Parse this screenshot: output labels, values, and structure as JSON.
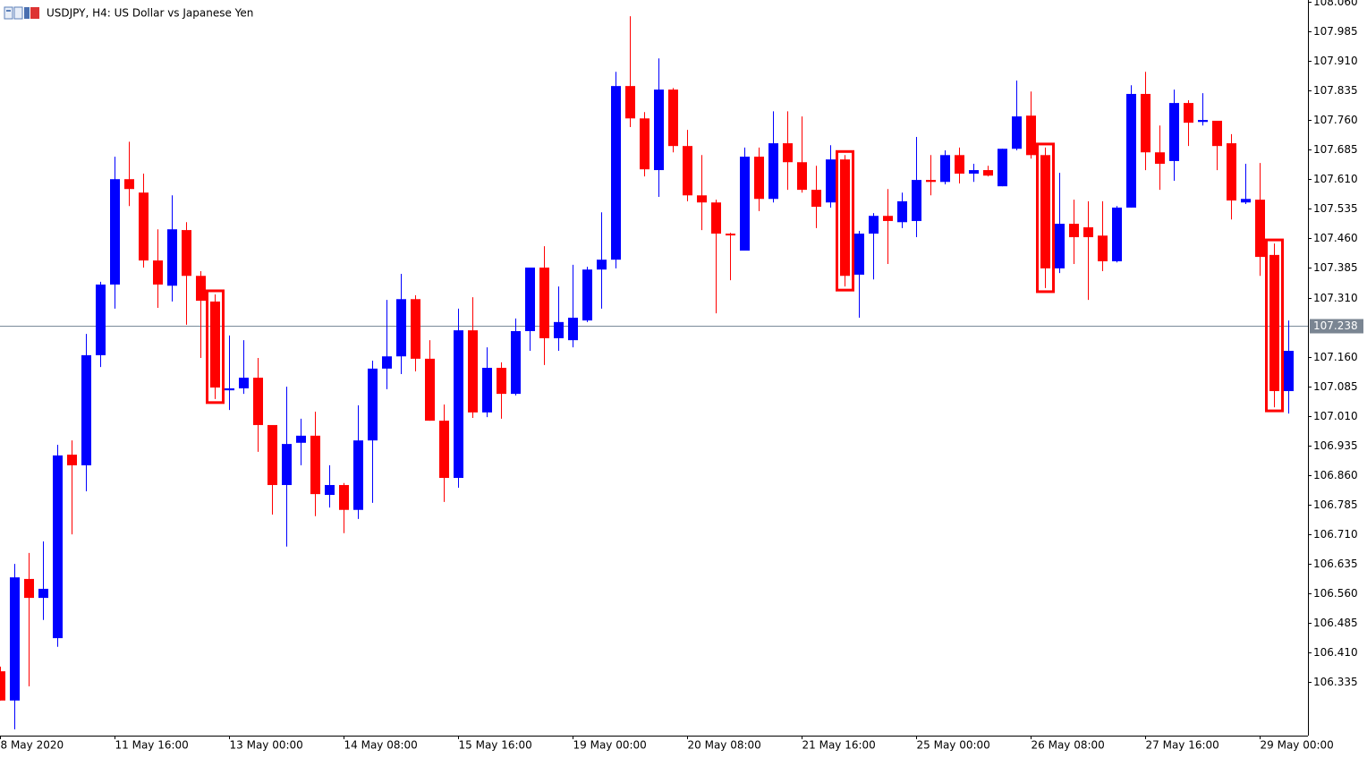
{
  "chart_data": {
    "type": "candlestick",
    "title": "USDJPY, H4:  US Dollar vs Japanese Yen",
    "categories": [
      "8 May 2020",
      null,
      null,
      null,
      null,
      null,
      null,
      null,
      "11 May 16:00",
      null,
      null,
      null,
      null,
      null,
      null,
      null,
      "13 May 00:00",
      null,
      null,
      null,
      null,
      null,
      null,
      null,
      "14 May 08:00",
      null,
      null,
      null,
      null,
      null,
      null,
      null,
      "15 May 16:00",
      null,
      null,
      null,
      null,
      null,
      null,
      null,
      "19 May 00:00",
      null,
      null,
      null,
      null,
      null,
      null,
      null,
      "20 May 08:00",
      null,
      null,
      null,
      null,
      null,
      null,
      null,
      "21 May 16:00",
      null,
      null,
      null,
      null,
      null,
      null,
      null,
      "25 May 00:00",
      null,
      null,
      null,
      null,
      null,
      null,
      null,
      "26 May 08:00",
      null,
      null,
      null,
      null,
      null,
      null,
      null,
      "27 May 16:00",
      null,
      null,
      null,
      null,
      null,
      null,
      null,
      "29 May 00:00",
      null,
      null
    ],
    "open": [
      106.363,
      106.289,
      106.597,
      106.549,
      106.447,
      106.912,
      106.885,
      107.164,
      107.343,
      107.61,
      107.576,
      107.404,
      107.34,
      107.481,
      107.365,
      107.3,
      107.075,
      107.08,
      107.107,
      106.987,
      106.835,
      106.942,
      106.96,
      106.81,
      106.835,
      106.772,
      106.948,
      107.13,
      107.161,
      107.306,
      107.155,
      106.998,
      106.853,
      107.227,
      107.019,
      107.132,
      107.066,
      107.225,
      107.386,
      107.207,
      107.202,
      107.252,
      107.381,
      107.406,
      107.846,
      107.764,
      107.633,
      107.837,
      107.694,
      107.569,
      107.551,
      107.472,
      107.429,
      107.667,
      107.56,
      107.701,
      107.653,
      107.583,
      107.551,
      107.66,
      107.368,
      107.472,
      107.517,
      107.501,
      107.504,
      107.608,
      107.603,
      107.671,
      107.624,
      107.633,
      107.592,
      107.687,
      107.771,
      107.671,
      107.384,
      107.497,
      107.488,
      107.467,
      107.402,
      107.538,
      107.826,
      107.678,
      107.656,
      107.803,
      107.755,
      107.758,
      107.701,
      107.551,
      107.558,
      107.418,
      107.073
    ],
    "high": [
      106.375,
      106.635,
      106.663,
      106.692,
      106.937,
      106.948,
      107.218,
      107.35,
      107.667,
      107.705,
      107.624,
      107.483,
      107.569,
      107.501,
      107.377,
      107.318,
      107.214,
      107.202,
      107.157,
      106.987,
      107.084,
      107.003,
      107.021,
      106.885,
      106.84,
      107.037,
      107.15,
      107.304,
      107.37,
      107.316,
      107.202,
      107.039,
      107.282,
      107.311,
      107.184,
      107.146,
      107.257,
      107.386,
      107.44,
      107.338,
      107.393,
      107.388,
      107.526,
      107.882,
      108.023,
      107.78,
      107.916,
      107.841,
      107.735,
      107.671,
      107.558,
      107.474,
      107.69,
      107.69,
      107.782,
      107.782,
      107.769,
      107.644,
      107.696,
      107.671,
      107.479,
      107.524,
      107.585,
      107.576,
      107.717,
      107.671,
      107.683,
      107.69,
      107.649,
      107.644,
      107.687,
      107.86,
      107.832,
      107.69,
      107.626,
      107.558,
      107.554,
      107.554,
      107.542,
      107.848,
      107.882,
      107.746,
      107.837,
      107.81,
      107.828,
      107.758,
      107.724,
      107.649,
      107.651,
      107.447,
      107.252
    ],
    "low": [
      106.289,
      106.216,
      106.325,
      106.493,
      106.425,
      106.71,
      106.819,
      107.134,
      107.282,
      107.542,
      107.386,
      107.284,
      107.3,
      107.241,
      107.157,
      107.053,
      107.025,
      107.066,
      106.919,
      106.76,
      106.679,
      106.885,
      106.756,
      106.778,
      106.713,
      106.749,
      106.79,
      107.078,
      107.116,
      107.123,
      106.998,
      106.792,
      106.828,
      107.005,
      107.007,
      107.003,
      107.062,
      107.175,
      107.139,
      107.175,
      107.184,
      107.248,
      107.282,
      107.384,
      107.742,
      107.617,
      107.565,
      107.678,
      107.554,
      107.481,
      107.27,
      107.354,
      107.429,
      107.529,
      107.551,
      107.583,
      107.576,
      107.486,
      107.538,
      107.338,
      107.259,
      107.356,
      107.395,
      107.486,
      107.463,
      107.569,
      107.597,
      107.599,
      107.603,
      107.617,
      107.592,
      107.683,
      107.662,
      107.334,
      107.372,
      107.395,
      107.304,
      107.377,
      107.399,
      107.538,
      107.633,
      107.583,
      107.606,
      107.694,
      107.746,
      107.633,
      107.508,
      107.547,
      107.365,
      107.032,
      107.016
    ],
    "close": [
      106.289,
      106.601,
      106.549,
      106.572,
      106.91,
      106.885,
      107.164,
      107.343,
      107.61,
      107.585,
      107.404,
      107.343,
      107.483,
      107.365,
      107.302,
      107.082,
      107.08,
      107.107,
      106.987,
      106.835,
      106.939,
      106.96,
      106.812,
      106.835,
      106.772,
      106.948,
      107.13,
      107.161,
      107.306,
      107.155,
      106.998,
      106.853,
      107.227,
      107.019,
      107.132,
      107.066,
      107.225,
      107.386,
      107.207,
      107.248,
      107.259,
      107.381,
      107.406,
      107.846,
      107.764,
      107.635,
      107.837,
      107.694,
      107.569,
      107.551,
      107.472,
      107.47,
      107.667,
      107.56,
      107.701,
      107.653,
      107.583,
      107.54,
      107.66,
      107.365,
      107.472,
      107.517,
      107.504,
      107.554,
      107.608,
      107.603,
      107.671,
      107.624,
      107.633,
      107.619,
      107.687,
      107.769,
      107.671,
      107.384,
      107.497,
      107.463,
      107.463,
      107.402,
      107.538,
      107.826,
      107.678,
      107.649,
      107.803,
      107.753,
      107.76,
      107.694,
      107.556,
      107.56,
      107.413,
      107.073,
      107.175
    ],
    "up_color": "#0000ff",
    "down_color": "#ff0000",
    "highlights": {
      "color": "#ff0000",
      "indices": [
        15,
        59,
        73,
        89
      ]
    },
    "current_price": {
      "value": 107.238,
      "label": "107.238"
    },
    "ylim": [
      106.2,
      108.064
    ],
    "yticks": [
      {
        "value": 108.06,
        "label": "108.060"
      },
      {
        "value": 107.985,
        "label": "107.985"
      },
      {
        "value": 107.91,
        "label": "107.910"
      },
      {
        "value": 107.835,
        "label": "107.835"
      },
      {
        "value": 107.76,
        "label": "107.760"
      },
      {
        "value": 107.685,
        "label": "107.685"
      },
      {
        "value": 107.61,
        "label": "107.610"
      },
      {
        "value": 107.535,
        "label": "107.535"
      },
      {
        "value": 107.46,
        "label": "107.460"
      },
      {
        "value": 107.385,
        "label": "107.385"
      },
      {
        "value": 107.31,
        "label": "107.310"
      },
      {
        "value": 107.16,
        "label": "107.160"
      },
      {
        "value": 107.085,
        "label": "107.085"
      },
      {
        "value": 107.01,
        "label": "107.010"
      },
      {
        "value": 106.935,
        "label": "106.935"
      },
      {
        "value": 106.86,
        "label": "106.860"
      },
      {
        "value": 106.785,
        "label": "106.785"
      },
      {
        "value": 106.71,
        "label": "106.710"
      },
      {
        "value": 106.635,
        "label": "106.635"
      },
      {
        "value": 106.56,
        "label": "106.560"
      },
      {
        "value": 106.485,
        "label": "106.485"
      },
      {
        "value": 106.41,
        "label": "106.410"
      },
      {
        "value": 106.335,
        "label": "106.335"
      }
    ]
  }
}
